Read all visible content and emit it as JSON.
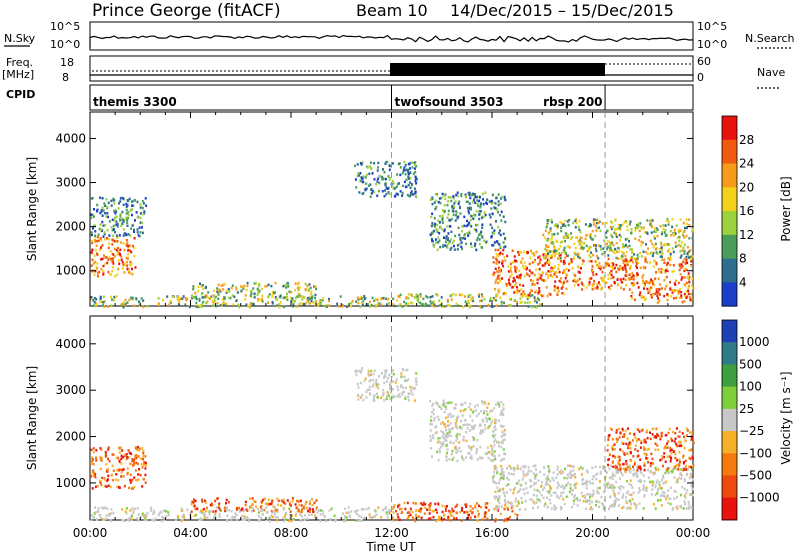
{
  "header": {
    "station": "Prince George (fitACF)",
    "beam": "Beam 10",
    "dates": "14/Dec/2015 – 15/Dec/2015"
  },
  "top_panels": {
    "nsky_label": "N.Sky",
    "nsky_ticks": [
      "10^5",
      "10^0"
    ],
    "nsearch_label": "N.Search",
    "freq_label": "Freq.",
    "freq_unit": "[MHz]",
    "freq_ticks": [
      "18",
      "8"
    ],
    "nave_label": "Nave",
    "nave_ticks": [
      "60",
      "0"
    ],
    "cpid_label": "CPID",
    "cpid_segments": [
      {
        "label": "themis 3300",
        "start_hour": 0,
        "end_hour": 12
      },
      {
        "label": "twofsound 3503",
        "start_hour": 12,
        "end_hour": 20.5
      },
      {
        "label": "rbsp 200",
        "start_hour": 20.5,
        "end_hour": 24
      }
    ]
  },
  "chart_data": [
    {
      "type": "heatmap",
      "quantity": "power",
      "ylabel": "Slant Range [km]",
      "ylim": [
        200,
        4600
      ],
      "yticks": [
        "1000",
        "2000",
        "3000",
        "4000"
      ],
      "xlim_hours": [
        0,
        24
      ],
      "colorbar_label": "Power [dB]",
      "colorbar_ticks": [
        "28",
        "24",
        "20",
        "16",
        "12",
        "8",
        "4"
      ],
      "colorbar_colors": [
        "#e8120f",
        "#f25a0e",
        "#f79b1a",
        "#f4d21a",
        "#9bd13a",
        "#4a9e5c",
        "#2e6e8e",
        "#1a3fc9"
      ],
      "regions": [
        {
          "x0": 0.0,
          "x1": 1.8,
          "y0": 900,
          "y1": 1800,
          "weight": "high"
        },
        {
          "x0": 0.0,
          "x1": 2.2,
          "y0": 1800,
          "y1": 2700,
          "weight": "low"
        },
        {
          "x0": 0.0,
          "x1": 12.0,
          "y0": 200,
          "y1": 450,
          "weight": "mid"
        },
        {
          "x0": 4.0,
          "x1": 9.0,
          "y0": 380,
          "y1": 750,
          "weight": "mid"
        },
        {
          "x0": 10.5,
          "x1": 13.0,
          "y0": 2700,
          "y1": 3500,
          "weight": "low"
        },
        {
          "x0": 12.0,
          "x1": 18.0,
          "y0": 200,
          "y1": 500,
          "weight": "mid"
        },
        {
          "x0": 13.5,
          "x1": 16.5,
          "y0": 1500,
          "y1": 2800,
          "weight": "low"
        },
        {
          "x0": 16.0,
          "x1": 19.0,
          "y0": 450,
          "y1": 1500,
          "weight": "high"
        },
        {
          "x0": 19.0,
          "x1": 24.0,
          "y0": 600,
          "y1": 1300,
          "weight": "high"
        },
        {
          "x0": 18.0,
          "x1": 24.0,
          "y0": 1300,
          "y1": 2200,
          "weight": "mid"
        },
        {
          "x0": 21.5,
          "x1": 24.0,
          "y0": 300,
          "y1": 600,
          "weight": "high"
        }
      ]
    },
    {
      "type": "heatmap",
      "quantity": "velocity",
      "ylabel": "Slant Range [km]",
      "ylim": [
        200,
        4600
      ],
      "yticks": [
        "1000",
        "2000",
        "3000",
        "4000"
      ],
      "xlim_hours": [
        0,
        24
      ],
      "colorbar_label": "Velocity [m s⁻¹]",
      "colorbar_ticks": [
        "1000",
        "500",
        "100",
        "25",
        "−25",
        "−100",
        "−500",
        "−1000"
      ],
      "colorbar_colors": [
        "#1f3fb5",
        "#2f7a86",
        "#3f9e3f",
        "#7fcf3a",
        "#c8c8c8",
        "#f7b02a",
        "#f57a0e",
        "#ef4a0e",
        "#e8120f"
      ],
      "regions": [
        {
          "x0": 0.0,
          "x1": 2.2,
          "y0": 900,
          "y1": 1800,
          "weight": "neg"
        },
        {
          "x0": 0.0,
          "x1": 12.0,
          "y0": 200,
          "y1": 500,
          "weight": "zero"
        },
        {
          "x0": 4.0,
          "x1": 9.0,
          "y0": 400,
          "y1": 700,
          "weight": "neg"
        },
        {
          "x0": 10.5,
          "x1": 13.0,
          "y0": 2800,
          "y1": 3500,
          "weight": "zero"
        },
        {
          "x0": 12.0,
          "x1": 17.0,
          "y0": 200,
          "y1": 600,
          "weight": "neg"
        },
        {
          "x0": 13.5,
          "x1": 16.5,
          "y0": 1500,
          "y1": 2800,
          "weight": "zero"
        },
        {
          "x0": 16.0,
          "x1": 24.0,
          "y0": 450,
          "y1": 1400,
          "weight": "zero"
        },
        {
          "x0": 20.5,
          "x1": 24.0,
          "y0": 1300,
          "y1": 2200,
          "weight": "neg"
        }
      ]
    }
  ],
  "xaxis": {
    "ticks": [
      "00:00",
      "04:00",
      "08:00",
      "12:00",
      "16:00",
      "20:00",
      "00:00"
    ],
    "label": "Time UT"
  }
}
